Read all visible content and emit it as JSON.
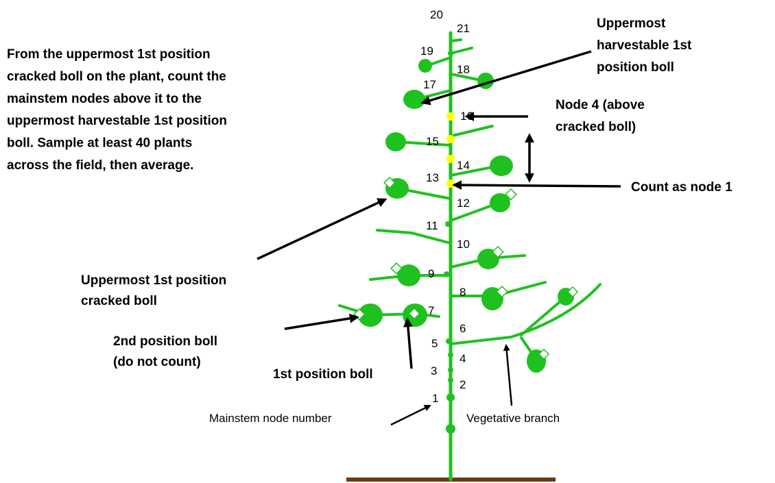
{
  "instructions": [
    "From the uppermost 1st position",
    "cracked boll on the plant, count the",
    "mainstem nodes above it to the",
    "uppermost harvestable 1st position",
    "boll.  Sample at least 40 plants",
    "across the field, then average."
  ],
  "callouts": [
    {
      "lines": [
        "Uppermost",
        "harvestable 1st",
        "position boll"
      ]
    },
    {
      "lines": [
        "Node 4 (above",
        "cracked boll)"
      ]
    },
    {
      "lines": [
        "Count as node 1"
      ]
    },
    {
      "lines": [
        "Uppermost 1st position",
        "cracked boll"
      ]
    },
    {
      "lines": [
        "2nd position boll",
        "(do not count)"
      ]
    },
    {
      "lines": [
        "1st position boll"
      ]
    },
    {
      "lines": [
        "Mainstem node number"
      ]
    },
    {
      "lines": [
        "Vegetative branch"
      ]
    }
  ],
  "node_numbers": [
    "1",
    "2",
    "3",
    "4",
    "5",
    "6",
    "7",
    "8",
    "9",
    "10",
    "11",
    "12",
    "13",
    "14",
    "15",
    "16",
    "17",
    "18",
    "19",
    "20",
    "21"
  ]
}
